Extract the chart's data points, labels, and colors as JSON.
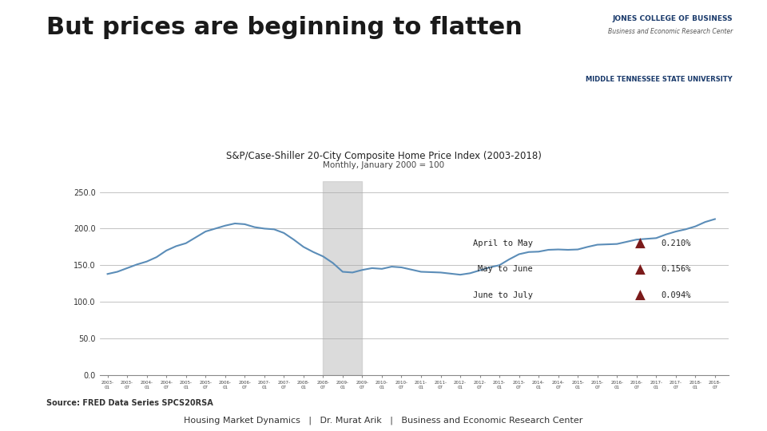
{
  "title": "But prices are beginning to flatten",
  "chart_title": "S&P/Case-Shiller 20-City Composite Home Price Index (2003-2018)",
  "chart_subtitle": "Monthly, January 2000 = 100",
  "source": "Source: FRED Data Series SPCS20RSA",
  "footer": "Housing Market Dynamics   |   Dr. Murat Arik   |   Business and Economic Research Center",
  "line_color": "#5b8db8",
  "shaded_region": [
    2008.5,
    2009.5
  ],
  "shaded_color": "#cccccc",
  "annotations": [
    {
      "label": "April to May",
      "value": "0.210%"
    },
    {
      "label": "May to June",
      "value": "0.156%"
    },
    {
      "label": "June to July",
      "value": "0.094%"
    }
  ],
  "arrow_color": "#7b1a1a",
  "yticks": [
    0.0,
    50.0,
    100.0,
    150.0,
    200.0,
    250.0
  ],
  "ylim": [
    0,
    265
  ],
  "ylabel_color": "#333333",
  "background_color": "#ffffff",
  "left_bar_color": "#1a3a6b",
  "title_color": "#1a1a1a",
  "jones_line1": "JONES COLLEGE OF BUSINESS",
  "jones_line2": "Business and Economic Research Center",
  "jones_line3": "MIDDLE TENNESSEE STATE UNIVERSITY",
  "data": {
    "2003-01": 138.0,
    "2003-04": 141.0,
    "2003-07": 146.0,
    "2003-10": 151.0,
    "2004-01": 155.0,
    "2004-04": 161.0,
    "2004-07": 170.0,
    "2004-10": 176.0,
    "2005-01": 180.0,
    "2005-04": 188.0,
    "2005-07": 196.0,
    "2005-10": 200.0,
    "2006-01": 204.0,
    "2006-04": 207.0,
    "2006-07": 206.0,
    "2006-10": 202.0,
    "2007-01": 200.0,
    "2007-04": 199.0,
    "2007-07": 194.0,
    "2007-10": 185.0,
    "2008-01": 175.0,
    "2008-04": 168.0,
    "2008-07": 162.0,
    "2008-10": 153.0,
    "2009-01": 141.0,
    "2009-04": 140.0,
    "2009-07": 143.5,
    "2009-10": 146.0,
    "2010-01": 145.0,
    "2010-04": 148.0,
    "2010-07": 147.0,
    "2010-10": 144.0,
    "2011-01": 141.0,
    "2011-04": 140.5,
    "2011-07": 140.0,
    "2011-10": 138.5,
    "2012-01": 137.0,
    "2012-04": 139.0,
    "2012-07": 143.0,
    "2012-10": 147.0,
    "2013-01": 150.0,
    "2013-04": 158.0,
    "2013-07": 165.0,
    "2013-10": 168.0,
    "2014-01": 168.5,
    "2014-04": 171.0,
    "2014-07": 171.5,
    "2014-10": 171.0,
    "2015-01": 171.5,
    "2015-04": 175.0,
    "2015-07": 178.0,
    "2015-10": 178.5,
    "2016-01": 179.0,
    "2016-04": 182.0,
    "2016-07": 185.0,
    "2016-10": 186.0,
    "2017-01": 187.0,
    "2017-04": 192.0,
    "2017-07": 196.0,
    "2017-10": 199.0,
    "2018-01": 203.0,
    "2018-04": 209.0,
    "2018-07": 213.0
  }
}
